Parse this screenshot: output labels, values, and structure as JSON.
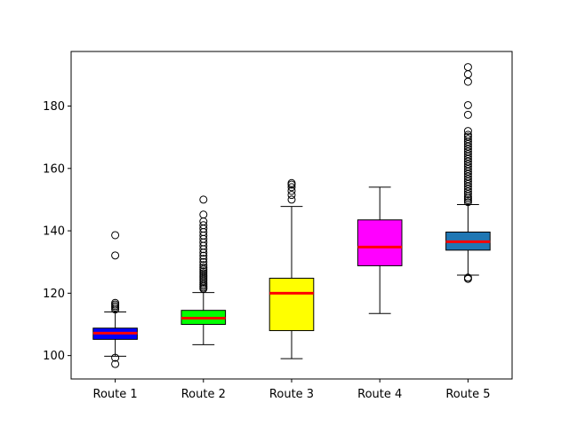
{
  "chart_data": {
    "type": "boxplot",
    "title": "",
    "xlabel": "",
    "ylabel": "",
    "ylim": [
      92.5,
      197.5
    ],
    "yticks": [
      100,
      120,
      140,
      160,
      180
    ],
    "ytick_labels": [
      "100",
      "120",
      "140",
      "160",
      "180"
    ],
    "grid": false,
    "legend": "none",
    "median_color": "#ff0000",
    "categories": [
      "Route 1",
      "Route 2",
      "Route 3",
      "Route 4",
      "Route 5"
    ],
    "boxes": [
      {
        "label": "Route 1",
        "color": "#0000ff",
        "whisker_low": 99.8,
        "q1": 105.2,
        "median": 107.2,
        "q3": 108.8,
        "whisker_high": 114.0,
        "outliers": [
          97.3,
          99.3,
          114.8,
          115.4,
          115.9,
          116.4,
          116.9,
          132.1,
          138.6
        ]
      },
      {
        "label": "Route 2",
        "color": "#00ff00",
        "whisker_low": 103.5,
        "q1": 110.0,
        "median": 112.0,
        "q3": 114.5,
        "whisker_high": 120.2,
        "outliers": [
          121.4,
          121.8,
          122.3,
          122.8,
          123.4,
          124.0,
          124.6,
          125.2,
          125.8,
          126.4,
          127.0,
          127.6,
          128.2,
          129.0,
          130.0,
          131.0,
          132.0,
          133.0,
          134.1,
          135.2,
          136.3,
          137.4,
          138.5,
          139.6,
          140.7,
          141.8,
          143.0,
          145.2,
          150.0
        ]
      },
      {
        "label": "Route 3",
        "color": "#ffff00",
        "whisker_low": 99.0,
        "q1": 108.0,
        "median": 120.0,
        "q3": 124.8,
        "whisker_high": 147.8,
        "outliers": [
          150.0,
          151.5,
          152.8,
          154.0,
          154.8,
          155.3
        ]
      },
      {
        "label": "Route 4",
        "color": "#ff00ff",
        "whisker_low": 113.5,
        "q1": 128.8,
        "median": 134.8,
        "q3": 143.5,
        "whisker_high": 154.0,
        "outliers": []
      },
      {
        "label": "Route 5",
        "color": "#1f77b4",
        "whisker_low": 125.8,
        "q1": 133.8,
        "median": 136.5,
        "q3": 139.6,
        "whisker_high": 148.4,
        "outliers": [
          124.6,
          125.0,
          149.2,
          149.8,
          150.4,
          151.0,
          151.8,
          152.6,
          153.4,
          154.2,
          155.0,
          155.8,
          156.6,
          157.4,
          158.2,
          159.0,
          159.8,
          160.6,
          161.4,
          162.2,
          163.0,
          163.8,
          164.6,
          165.4,
          166.2,
          167.0,
          167.8,
          168.6,
          169.4,
          170.2,
          170.8,
          172.0,
          177.2,
          180.3,
          187.8,
          190.2,
          192.5
        ]
      }
    ]
  }
}
